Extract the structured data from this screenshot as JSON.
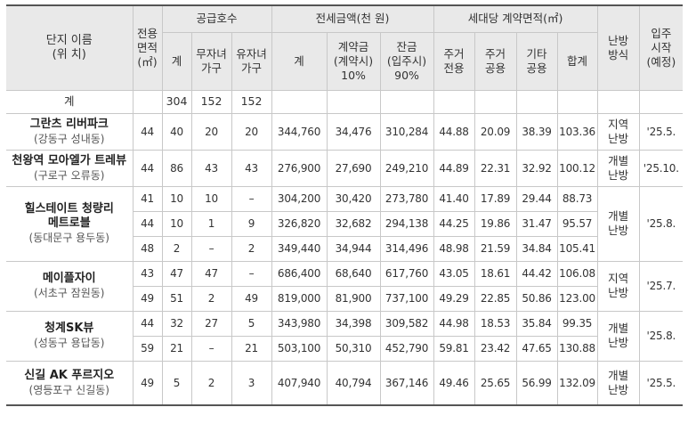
{
  "header": {
    "complex": [
      "단지 이름",
      "(위 치)"
    ],
    "area": [
      "전용",
      "면적",
      "(㎡)"
    ],
    "supply": "공급호수",
    "supply_total": "계",
    "supply_childless": [
      "무자녀",
      "가구"
    ],
    "supply_children": [
      "유자녀",
      "가구"
    ],
    "deposit": "전세금액(천 원)",
    "deposit_total": "계",
    "deposit_contract": [
      "계약금",
      "(계약시)",
      "10%"
    ],
    "deposit_balance": [
      "잔금",
      "(입주시)",
      "90%"
    ],
    "unit_area": "세대당 계약면적(㎡)",
    "ua_private": [
      "주거",
      "전용"
    ],
    "ua_common": [
      "주거",
      "공용"
    ],
    "ua_other": [
      "기타",
      "공용"
    ],
    "ua_total": "합계",
    "heating": [
      "난방",
      "방식"
    ],
    "movein": [
      "입주",
      "시작",
      "(예정)"
    ]
  },
  "total_row": {
    "label": "계",
    "supply_total": "304",
    "childless": "152",
    "children": "152"
  },
  "complexes": [
    {
      "name": "그란츠 리버파크",
      "loc": "(강동구 성내동)",
      "heating": [
        "지역",
        "난방"
      ],
      "movein": "'25.5.",
      "rows": [
        {
          "area": "44",
          "total": "40",
          "childless": "20",
          "children": "20",
          "dep_total": "344,760",
          "dep_contract": "34,476",
          "dep_balance": "310,284",
          "private": "44.88",
          "common": "20.09",
          "other": "38.39",
          "sum": "103.36"
        }
      ]
    },
    {
      "name": "천왕역 모아엘가 트레뷰",
      "loc": "(구로구 오류동)",
      "heating": [
        "개별",
        "난방"
      ],
      "movein": "'25.10.",
      "rows": [
        {
          "area": "44",
          "total": "86",
          "childless": "43",
          "children": "43",
          "dep_total": "276,900",
          "dep_contract": "27,690",
          "dep_balance": "249,210",
          "private": "44.89",
          "common": "22.31",
          "other": "32.92",
          "sum": "100.12"
        }
      ]
    },
    {
      "name": "힐스테이트 청량리 메트로블",
      "name_lines": [
        "힐스테이트 청량리",
        "메트로블"
      ],
      "loc": "(동대문구 용두동)",
      "heating": [
        "개별",
        "난방"
      ],
      "movein": "'25.8.",
      "rows": [
        {
          "area": "41",
          "total": "10",
          "childless": "10",
          "children": "–",
          "dep_total": "304,200",
          "dep_contract": "30,420",
          "dep_balance": "273,780",
          "private": "41.40",
          "common": "17.89",
          "other": "29.44",
          "sum": "88.73"
        },
        {
          "area": "44",
          "total": "10",
          "childless": "1",
          "children": "9",
          "dep_total": "326,820",
          "dep_contract": "32,682",
          "dep_balance": "294,138",
          "private": "44.25",
          "common": "19.86",
          "other": "31.47",
          "sum": "95.57"
        },
        {
          "area": "48",
          "total": "2",
          "childless": "–",
          "children": "2",
          "dep_total": "349,440",
          "dep_contract": "34,944",
          "dep_balance": "314,496",
          "private": "48.98",
          "common": "21.59",
          "other": "34.84",
          "sum": "105.41"
        }
      ]
    },
    {
      "name": "메이플자이",
      "loc": "(서초구 잠원동)",
      "heating": [
        "지역",
        "난방"
      ],
      "movein": "'25.7.",
      "rows": [
        {
          "area": "43",
          "total": "47",
          "childless": "47",
          "children": "–",
          "dep_total": "686,400",
          "dep_contract": "68,640",
          "dep_balance": "617,760",
          "private": "43.05",
          "common": "18.61",
          "other": "44.42",
          "sum": "106.08"
        },
        {
          "area": "49",
          "total": "51",
          "childless": "2",
          "children": "49",
          "dep_total": "819,000",
          "dep_contract": "81,900",
          "dep_balance": "737,100",
          "private": "49.29",
          "common": "22.85",
          "other": "50.86",
          "sum": "123.00"
        }
      ]
    },
    {
      "name": "청계SK뷰",
      "loc": "(성동구 용답동)",
      "heating": [
        "개별",
        "난방"
      ],
      "movein": "'25.8.",
      "rows": [
        {
          "area": "44",
          "total": "32",
          "childless": "27",
          "children": "5",
          "dep_total": "343,980",
          "dep_contract": "34,398",
          "dep_balance": "309,582",
          "private": "44.98",
          "common": "18.53",
          "other": "35.84",
          "sum": "99.35"
        },
        {
          "area": "59",
          "total": "21",
          "childless": "–",
          "children": "21",
          "dep_total": "503,100",
          "dep_contract": "50,310",
          "dep_balance": "452,790",
          "private": "59.81",
          "common": "23.42",
          "other": "47.65",
          "sum": "130.88"
        }
      ]
    },
    {
      "name": "신길 AK 푸르지오",
      "loc": "(영등포구 신길동)",
      "heating": [
        "개별",
        "난방"
      ],
      "movein": "'25.5.",
      "rows": [
        {
          "area": "49",
          "total": "5",
          "childless": "2",
          "children": "3",
          "dep_total": "407,940",
          "dep_contract": "40,794",
          "dep_balance": "367,146",
          "private": "49.46",
          "common": "25.65",
          "other": "56.99",
          "sum": "132.09"
        }
      ]
    }
  ]
}
